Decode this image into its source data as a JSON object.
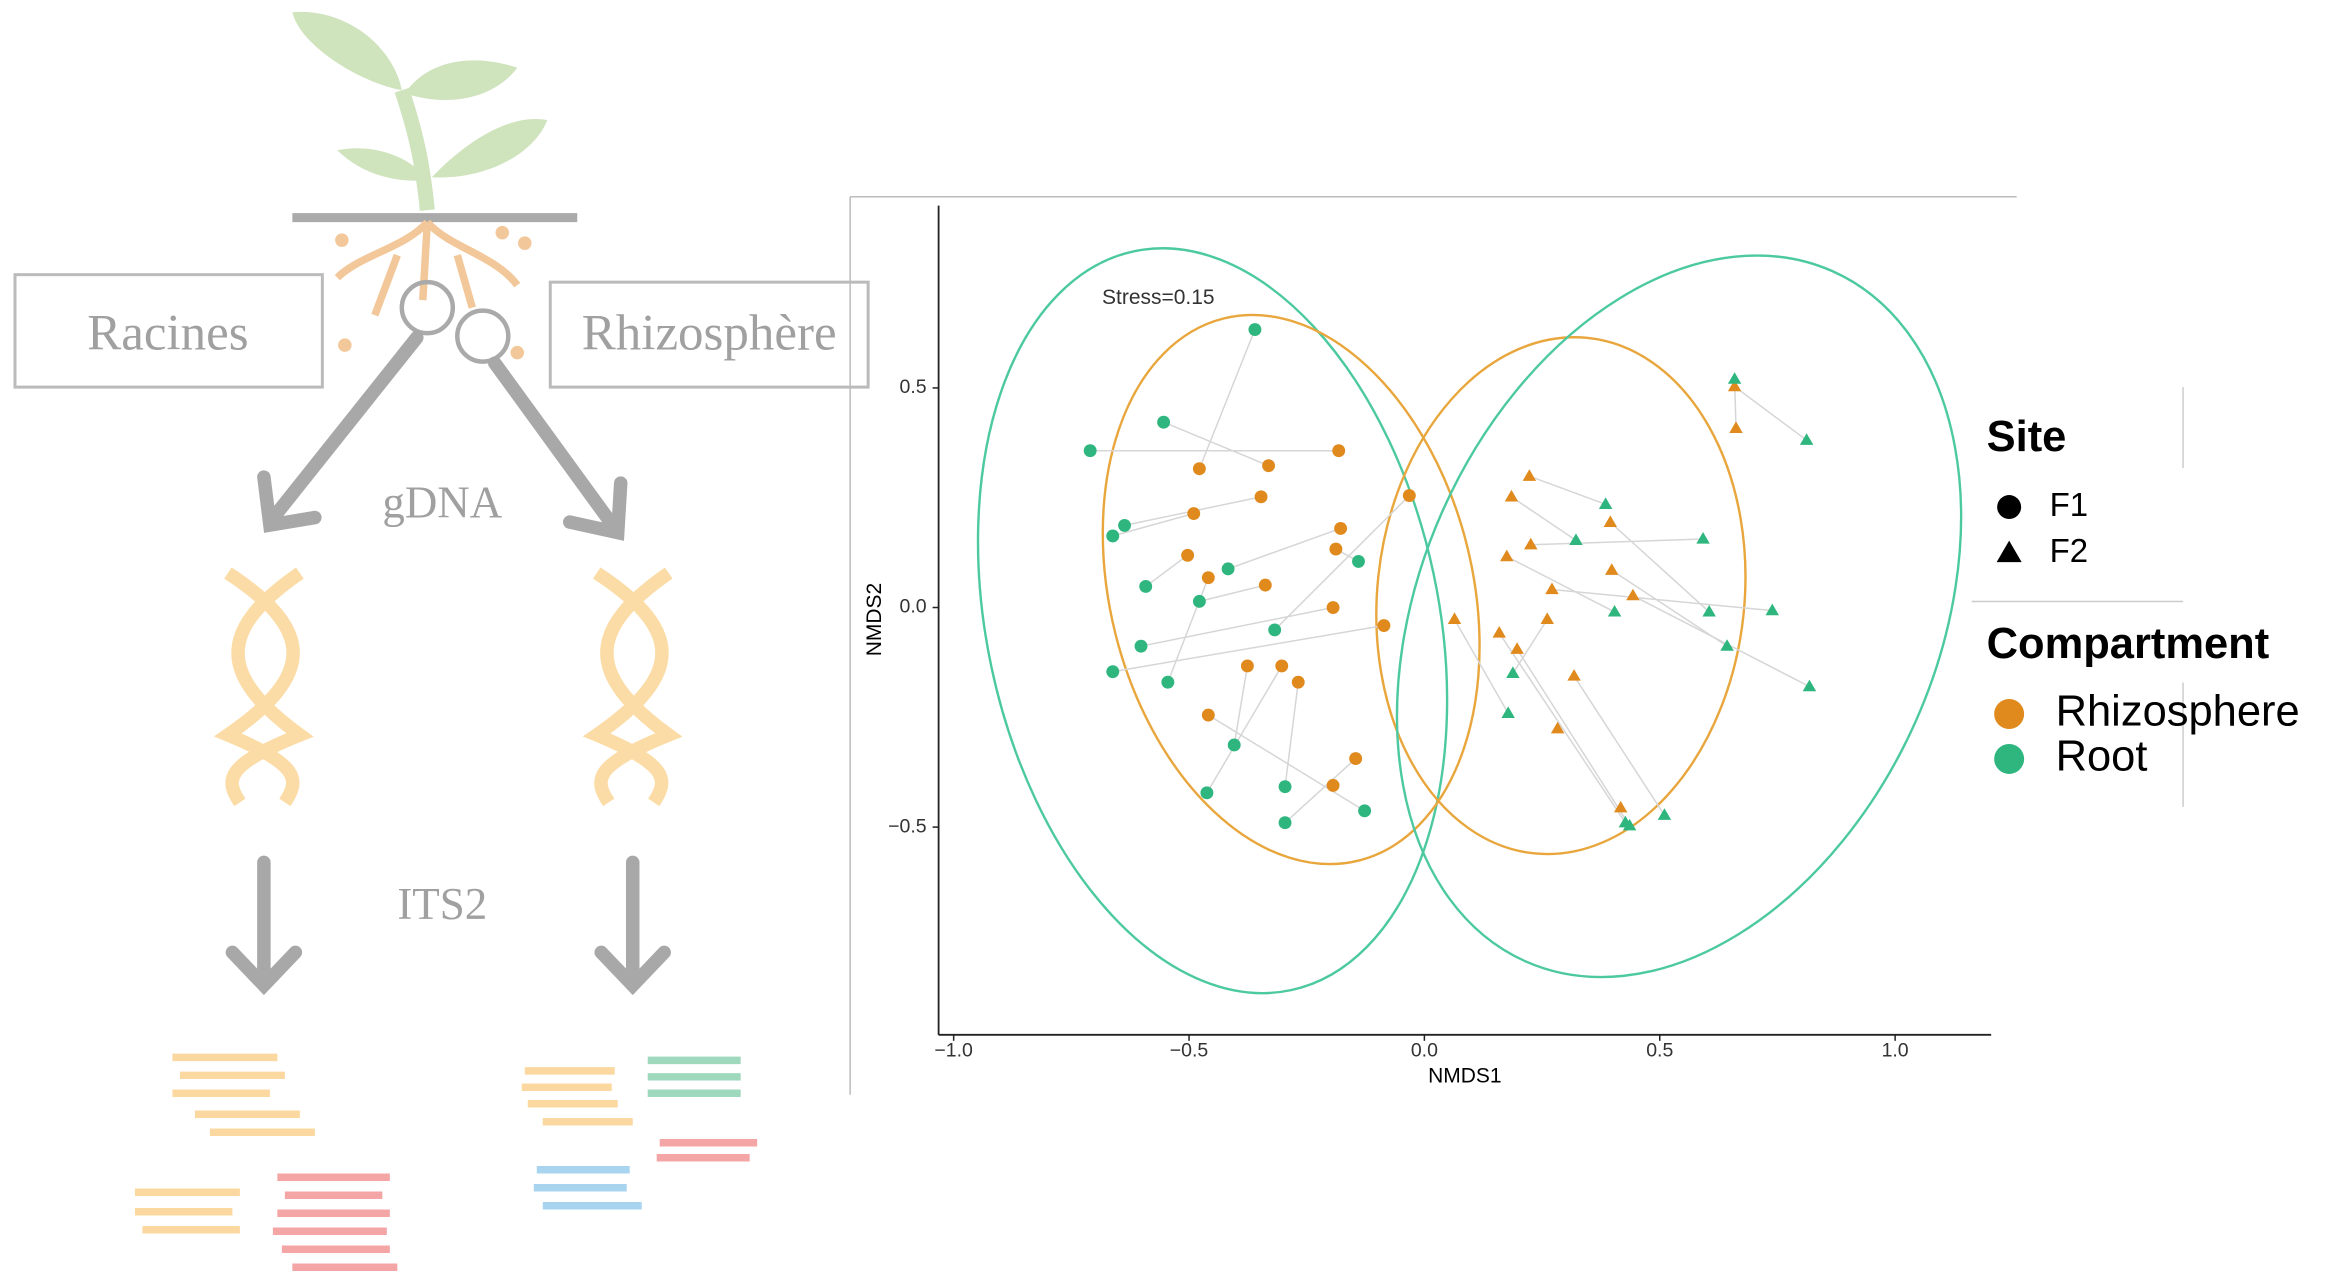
{
  "diagram": {
    "left_label": "Racines",
    "right_label": "Rhizosphère",
    "upper_step": "gDNA",
    "lower_step": "ITS2"
  },
  "chart_data": {
    "type": "scatter",
    "annotation": "Stress=0.15",
    "xlabel": "NMDS1",
    "ylabel": "NMDS2",
    "xlim": [
      -1.032,
      1.204
    ],
    "ylim": [
      -0.973,
      0.915
    ],
    "xticks": [
      {
        "value": -1,
        "label": "−1.0"
      },
      {
        "value": -0.5,
        "label": "−0.5"
      },
      {
        "value": 0,
        "label": "0.0"
      },
      0.5,
      {
        "value": 1,
        "label": "1.0"
      }
    ],
    "yticks": [
      {
        "value": -0.5,
        "label": "−0.5"
      },
      {
        "value": 0,
        "label": "0.0"
      },
      0.5
    ],
    "shape_legend": {
      "title": "Site",
      "entries": [
        {
          "label": "F1",
          "shape": "circle"
        },
        {
          "label": "F2",
          "shape": "triangle"
        }
      ]
    },
    "color_legend": {
      "title": "Compartment",
      "entries": [
        {
          "label": "Rhizosphere",
          "color": "#e08a1e"
        },
        {
          "label": "Root",
          "color": "#2fb67f"
        }
      ]
    },
    "series": [
      {
        "color": "#e08a1e",
        "shape": "circle",
        "x": [
          -0.478,
          -0.331,
          -0.182,
          -0.347,
          -0.49,
          -0.503,
          -0.178,
          -0.188,
          -0.338,
          -0.032,
          -0.194,
          -0.086,
          -0.459,
          -0.376,
          -0.303,
          -0.268,
          -0.459,
          -0.146,
          -0.194
        ],
        "y": [
          0.316,
          0.323,
          0.357,
          0.252,
          0.214,
          0.119,
          0.18,
          0.133,
          0.051,
          0.255,
          0.0,
          -0.041,
          0.068,
          -0.133,
          -0.133,
          -0.17,
          -0.245,
          -0.344,
          -0.405
        ]
      },
      {
        "color": "#2fb67f",
        "shape": "circle",
        "x": [
          -0.36,
          -0.554,
          -0.71,
          -0.637,
          -0.662,
          -0.592,
          -0.417,
          -0.14,
          -0.478,
          -0.318,
          -0.602,
          -0.662,
          -0.545,
          -0.404,
          -0.462,
          -0.296,
          -0.127,
          -0.296
        ],
        "y": [
          0.633,
          0.422,
          0.357,
          0.187,
          0.163,
          0.048,
          0.088,
          0.105,
          0.014,
          -0.051,
          -0.088,
          -0.146,
          -0.17,
          -0.313,
          -0.422,
          -0.408,
          -0.463,
          -0.49
        ]
      },
      {
        "color": "#e08a1e",
        "shape": "triangle",
        "x": [
          0.662,
          0.659,
          0.223,
          0.185,
          0.226,
          0.175,
          0.395,
          0.271,
          0.398,
          0.443,
          0.261,
          0.064,
          0.159,
          0.197,
          0.318,
          0.283,
          0.417
        ],
        "y": [
          0.408,
          0.503,
          0.299,
          0.252,
          0.143,
          0.116,
          0.194,
          0.041,
          0.085,
          0.027,
          -0.027,
          -0.027,
          -0.058,
          -0.095,
          -0.156,
          -0.276,
          -0.456
        ]
      },
      {
        "color": "#2fb67f",
        "shape": "triangle",
        "x": [
          0.659,
          0.812,
          0.385,
          0.322,
          0.592,
          0.404,
          0.605,
          0.739,
          0.643,
          0.818,
          0.188,
          0.178,
          0.427,
          0.436,
          0.51
        ],
        "y": [
          0.52,
          0.381,
          0.235,
          0.153,
          0.156,
          -0.01,
          -0.01,
          -0.007,
          -0.088,
          -0.18,
          -0.15,
          -0.241,
          -0.49,
          -0.497,
          -0.473
        ]
      }
    ],
    "ellipses": [
      {
        "color": "#4cc9a0",
        "cx": -0.45,
        "cy": -0.03,
        "rx": 0.48,
        "ry": 0.86,
        "angle": -12
      },
      {
        "color": "#e8a63c",
        "cx": -0.283,
        "cy": 0.041,
        "rx": 0.385,
        "ry": 0.636,
        "angle": -14
      },
      {
        "color": "#e8a63c",
        "cx": 0.29,
        "cy": 0.027,
        "rx": 0.39,
        "ry": 0.59,
        "angle": 6
      },
      {
        "color": "#4cc9a0",
        "cx": 0.541,
        "cy": -0.02,
        "rx": 0.55,
        "ry": 0.86,
        "angle": 24
      }
    ]
  }
}
